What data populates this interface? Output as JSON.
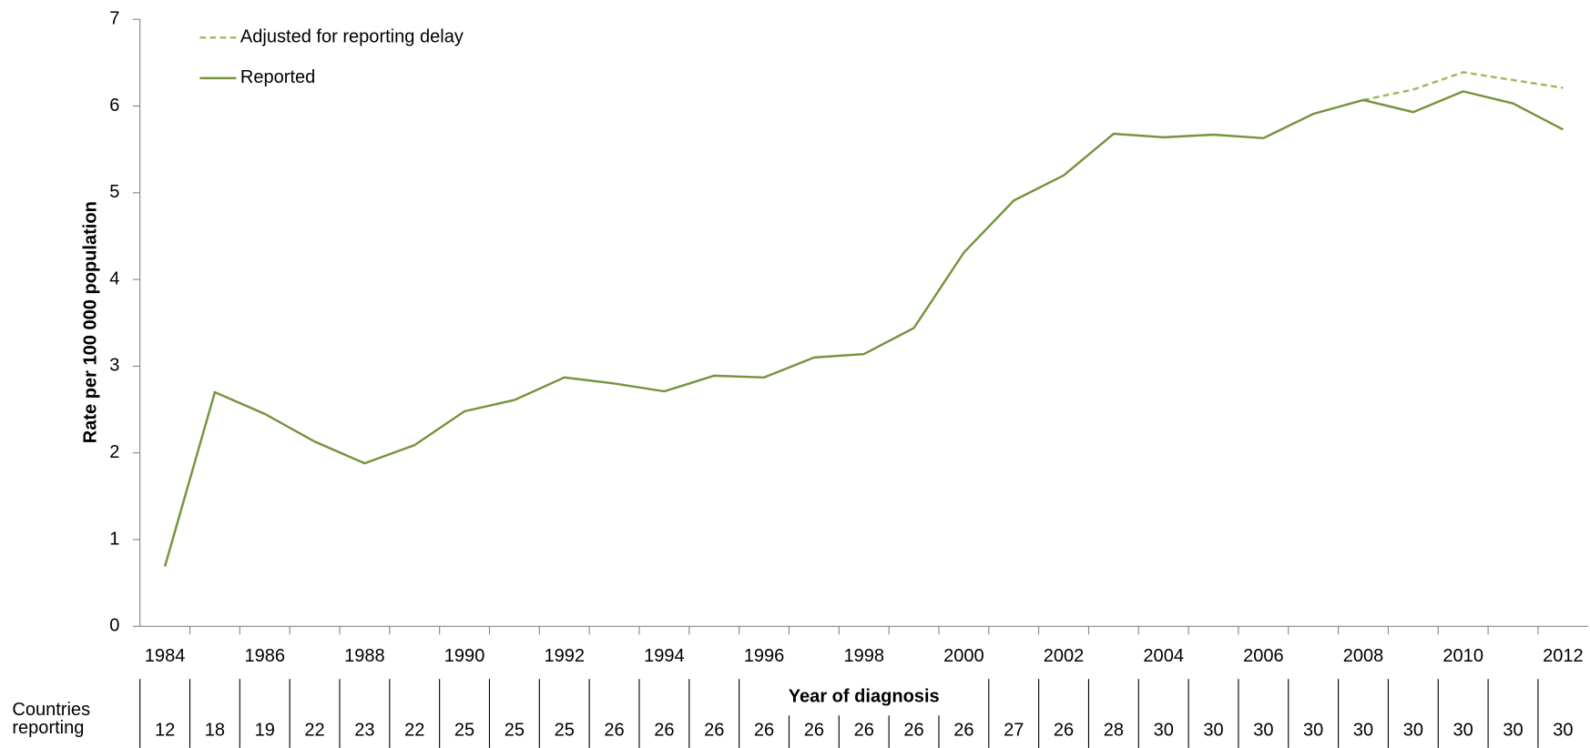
{
  "chart_data": {
    "type": "line",
    "y_label": "Rate per 100 000 population",
    "x_label": "Year of diagnosis",
    "x": [
      1984,
      1985,
      1986,
      1987,
      1988,
      1989,
      1990,
      1991,
      1992,
      1993,
      1994,
      1995,
      1996,
      1997,
      1998,
      1999,
      2000,
      2001,
      2002,
      2003,
      2004,
      2005,
      2006,
      2007,
      2008,
      2009,
      2010,
      2011,
      2012
    ],
    "xlim": [
      1983.5,
      2012.5
    ],
    "xticks": [
      1984,
      1986,
      1988,
      1990,
      1992,
      1994,
      1996,
      1998,
      2000,
      2002,
      2004,
      2006,
      2008,
      2010,
      2012
    ],
    "ylim": [
      0,
      7
    ],
    "yticks": [
      0,
      1,
      2,
      3,
      4,
      5,
      6,
      7
    ],
    "series": [
      {
        "name": "Adjusted for reporting delay",
        "color": "#9bbb59",
        "dashed": true,
        "values": [
          null,
          null,
          null,
          null,
          null,
          null,
          null,
          null,
          null,
          null,
          null,
          null,
          null,
          null,
          null,
          null,
          null,
          null,
          null,
          null,
          null,
          null,
          null,
          null,
          6.07,
          6.19,
          6.39,
          6.3,
          6.21
        ]
      },
      {
        "name": "Reported",
        "color": "#77933c",
        "dashed": false,
        "values": [
          0.69,
          2.7,
          2.45,
          2.13,
          1.88,
          2.09,
          2.48,
          2.61,
          2.87,
          2.8,
          2.71,
          2.89,
          2.87,
          3.1,
          3.14,
          3.44,
          4.31,
          4.91,
          5.2,
          5.68,
          5.64,
          5.67,
          5.63,
          5.91,
          6.07,
          5.93,
          6.17,
          6.03,
          5.73
        ]
      }
    ],
    "table": {
      "label_lines": [
        "Countries",
        "reporting"
      ],
      "values": [
        12,
        18,
        19,
        22,
        23,
        22,
        25,
        25,
        25,
        26,
        26,
        26,
        26,
        26,
        26,
        26,
        26,
        27,
        26,
        28,
        30,
        30,
        30,
        30,
        30,
        30,
        30,
        30,
        30
      ]
    }
  }
}
